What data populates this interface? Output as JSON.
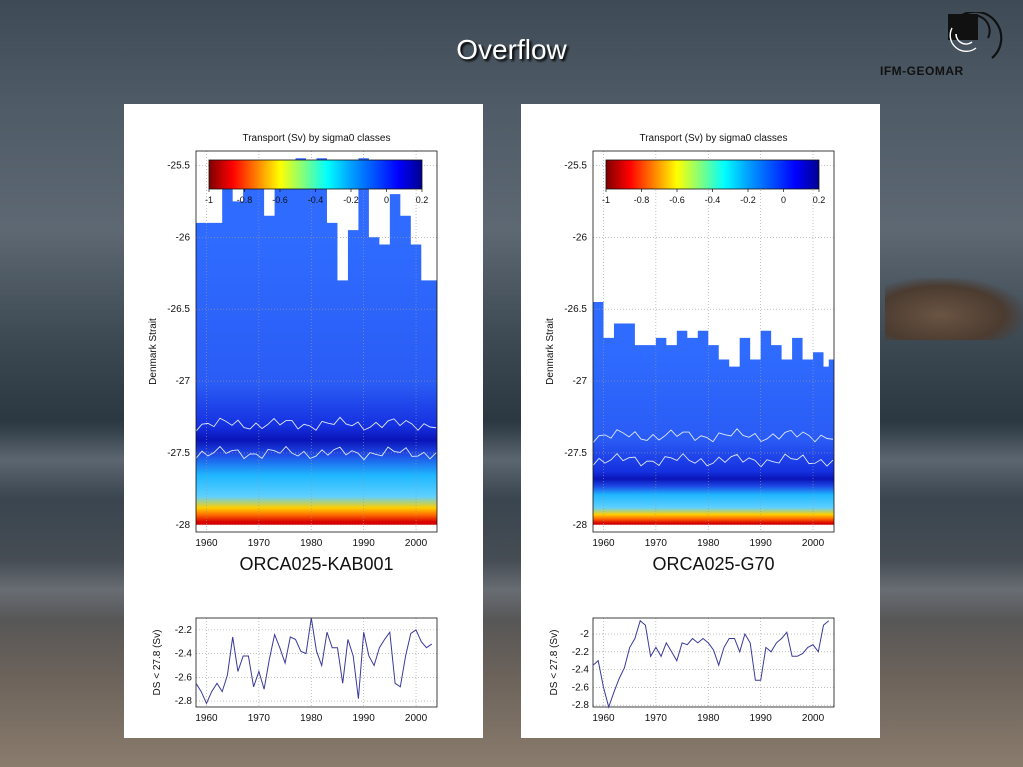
{
  "slide": {
    "title": "Overflow",
    "logo_text": "IFM-GEOMAR"
  },
  "colors": {
    "colorbar": [
      "#7f0000",
      "#ff0000",
      "#ff7f00",
      "#ffff00",
      "#7fff7f",
      "#00ffff",
      "#00a0ff",
      "#0050ff",
      "#0000ff",
      "#00008f"
    ],
    "line": "#3a3a9a"
  },
  "chart_data": [
    {
      "type": "heatmap",
      "title": "Transport (Sv) by sigma0 classes",
      "ylabel": "Denmark Strait",
      "caption": "ORCA025-KAB001",
      "x_ticks": [
        "1960",
        "1970",
        "1980",
        "1990",
        "2000"
      ],
      "xlim": [
        1958,
        2004
      ],
      "y_ticks": [
        "-25.5",
        "-26",
        "-26.5",
        "-27",
        "-27.5",
        "-28"
      ],
      "ylim": [
        -25.4,
        -28.05
      ],
      "colorbar": {
        "ticks": [
          "-1",
          "-0.8",
          "-0.6",
          "-0.4",
          "-0.2",
          "0",
          "0.2"
        ],
        "range": [
          -1,
          0.2
        ]
      },
      "top_density_by_year": {
        "years": [
          1958,
          1961,
          1963,
          1965,
          1967,
          1969,
          1971,
          1973,
          1975,
          1977,
          1979,
          1981,
          1983,
          1985,
          1987,
          1989,
          1991,
          1993,
          1995,
          1997,
          1999,
          2001,
          2003
        ],
        "values": [
          -25.9,
          -25.9,
          -25.55,
          -25.75,
          -25.65,
          -25.5,
          -25.85,
          -25.55,
          -25.6,
          -25.45,
          -25.65,
          -25.45,
          -25.9,
          -26.3,
          -25.95,
          -25.45,
          -26.0,
          -26.05,
          -25.7,
          -25.85,
          -26.05,
          -26.3,
          -26.3
        ]
      },
      "contour_bands": {
        "upper": -27.3,
        "lower": -27.5
      }
    },
    {
      "type": "line",
      "ylabel": "DS < 27.8 (Sv)",
      "x_ticks": [
        "1960",
        "1970",
        "1980",
        "1990",
        "2000"
      ],
      "xlim": [
        1958,
        2004
      ],
      "y_ticks": [
        "-2.2",
        "-2.4",
        "-2.6",
        "-2.8"
      ],
      "ylim": [
        -2.85,
        -2.1
      ],
      "x": [
        1958,
        1959,
        1960,
        1961,
        1962,
        1963,
        1964,
        1965,
        1966,
        1967,
        1968,
        1969,
        1970,
        1971,
        1972,
        1973,
        1974,
        1975,
        1976,
        1977,
        1978,
        1979,
        1980,
        1981,
        1982,
        1983,
        1984,
        1985,
        1986,
        1987,
        1988,
        1989,
        1990,
        1991,
        1992,
        1993,
        1994,
        1995,
        1996,
        1997,
        1998,
        1999,
        2000,
        2001,
        2002,
        2003
      ],
      "y": [
        -2.65,
        -2.72,
        -2.82,
        -2.72,
        -2.65,
        -2.72,
        -2.58,
        -2.26,
        -2.55,
        -2.42,
        -2.42,
        -2.68,
        -2.55,
        -2.7,
        -2.45,
        -2.24,
        -2.35,
        -2.48,
        -2.26,
        -2.28,
        -2.38,
        -2.4,
        -2.1,
        -2.38,
        -2.5,
        -2.22,
        -2.35,
        -2.35,
        -2.65,
        -2.28,
        -2.42,
        -2.78,
        -2.22,
        -2.42,
        -2.5,
        -2.35,
        -2.28,
        -2.22,
        -2.65,
        -2.68,
        -2.42,
        -2.23,
        -2.2,
        -2.3,
        -2.35,
        -2.32
      ]
    },
    {
      "type": "heatmap",
      "title": "Transport (Sv) by sigma0 classes",
      "ylabel": "Denmark Strait",
      "caption": "ORCA025-G70",
      "x_ticks": [
        "1960",
        "1970",
        "1980",
        "1990",
        "2000"
      ],
      "xlim": [
        1958,
        2004
      ],
      "y_ticks": [
        "-25.5",
        "-26",
        "-26.5",
        "-27",
        "-27.5",
        "-28"
      ],
      "ylim": [
        -25.4,
        -28.05
      ],
      "colorbar": {
        "ticks": [
          "-1",
          "-0.8",
          "-0.6",
          "-0.4",
          "-0.2",
          "0",
          "0.2"
        ],
        "range": [
          -1,
          0.2
        ]
      },
      "top_density_by_year": {
        "years": [
          1958,
          1960,
          1962,
          1964,
          1966,
          1968,
          1970,
          1972,
          1974,
          1976,
          1978,
          1980,
          1982,
          1984,
          1986,
          1988,
          1990,
          1992,
          1994,
          1996,
          1998,
          2000,
          2002,
          2003
        ],
        "values": [
          -26.45,
          -26.7,
          -26.6,
          -26.6,
          -26.75,
          -26.75,
          -26.7,
          -26.75,
          -26.65,
          -26.7,
          -26.65,
          -26.75,
          -26.85,
          -26.9,
          -26.7,
          -26.85,
          -26.65,
          -26.75,
          -26.85,
          -26.7,
          -26.85,
          -26.8,
          -26.9,
          -26.85
        ]
      },
      "contour_bands": {
        "upper": -27.38,
        "lower": -27.55
      }
    },
    {
      "type": "line",
      "ylabel": "DS < 27.8 (Sv)",
      "x_ticks": [
        "1960",
        "1970",
        "1980",
        "1990",
        "2000"
      ],
      "xlim": [
        1958,
        2004
      ],
      "y_ticks": [
        "-2",
        "-2.2",
        "-2.4",
        "-2.6",
        "-2.8"
      ],
      "ylim": [
        -2.82,
        -1.82
      ],
      "x": [
        1958,
        1959,
        1960,
        1961,
        1962,
        1963,
        1964,
        1965,
        1966,
        1967,
        1968,
        1969,
        1970,
        1971,
        1972,
        1973,
        1974,
        1975,
        1976,
        1977,
        1978,
        1979,
        1980,
        1981,
        1982,
        1983,
        1984,
        1985,
        1986,
        1987,
        1988,
        1989,
        1990,
        1991,
        1992,
        1993,
        1994,
        1995,
        1996,
        1997,
        1998,
        1999,
        2000,
        2001,
        2002,
        2003
      ],
      "y": [
        -2.35,
        -2.3,
        -2.6,
        -2.82,
        -2.65,
        -2.5,
        -2.38,
        -2.15,
        -2.05,
        -1.85,
        -1.9,
        -2.25,
        -2.15,
        -2.25,
        -2.1,
        -2.2,
        -2.3,
        -2.1,
        -2.12,
        -2.05,
        -2.1,
        -2.05,
        -2.1,
        -2.18,
        -2.35,
        -2.15,
        -2.05,
        -2.05,
        -2.2,
        -2.0,
        -2.1,
        -2.52,
        -2.52,
        -2.15,
        -2.2,
        -2.1,
        -2.05,
        -1.98,
        -2.25,
        -2.25,
        -2.22,
        -2.15,
        -2.12,
        -2.2,
        -1.9,
        -1.85
      ]
    }
  ]
}
